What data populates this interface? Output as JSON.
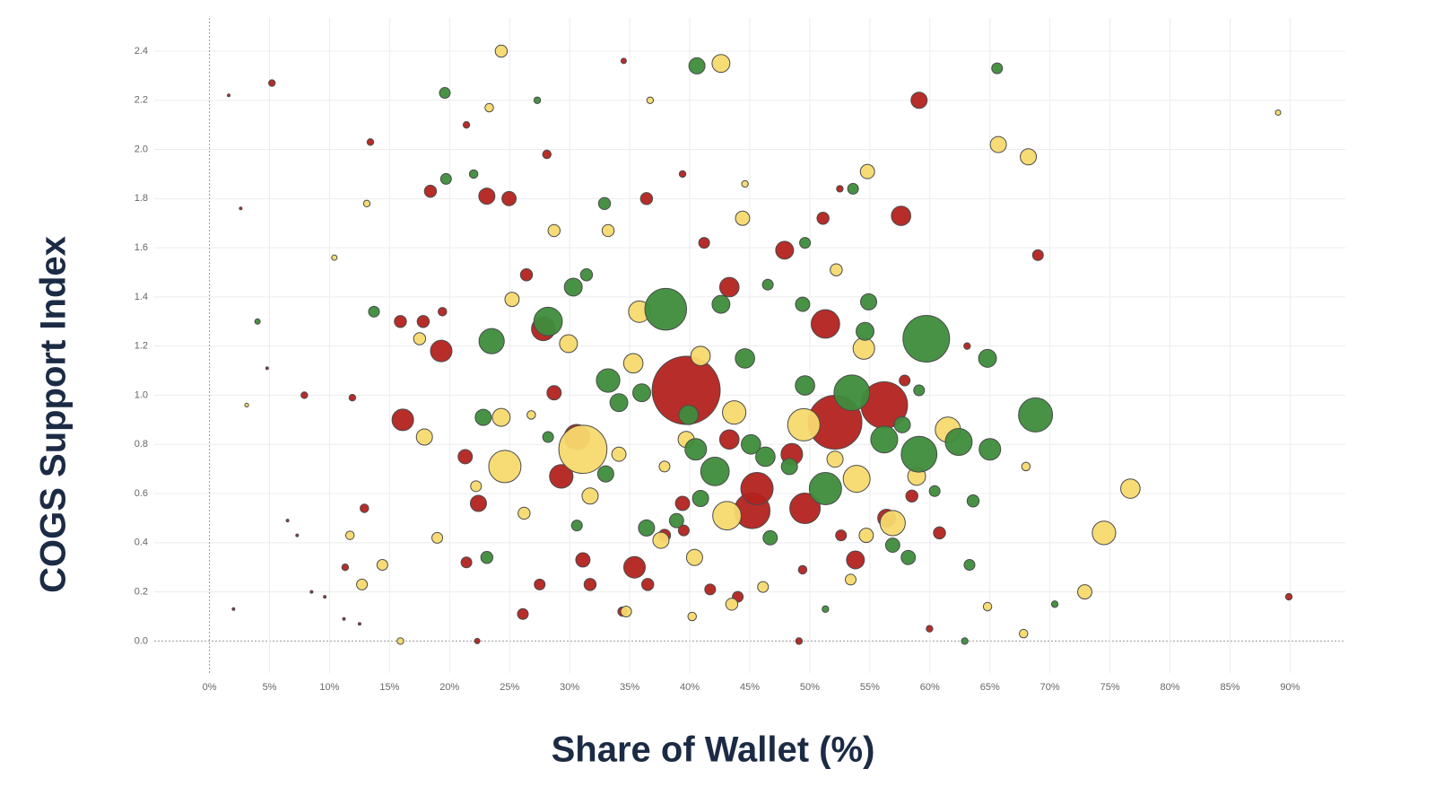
{
  "chart_data": {
    "type": "scatter",
    "x_label": "Share of Wallet (%)",
    "y_label": "COGS Support Index",
    "xlim": [
      -4.6,
      94.6
    ],
    "ylim": [
      -0.13,
      2.535
    ],
    "xticks": [
      {
        "value": 0,
        "label": "0%"
      },
      {
        "value": 5,
        "label": "5%"
      },
      {
        "value": 10,
        "label": "10%"
      },
      {
        "value": 15,
        "label": "15%"
      },
      {
        "value": 20,
        "label": "20%"
      },
      {
        "value": 25,
        "label": "25%"
      },
      {
        "value": 30,
        "label": "30%"
      },
      {
        "value": 35,
        "label": "35%"
      },
      {
        "value": 40,
        "label": "40%"
      },
      {
        "value": 45,
        "label": "45%"
      },
      {
        "value": 50,
        "label": "50%"
      },
      {
        "value": 55,
        "label": "55%"
      },
      {
        "value": 60,
        "label": "60%"
      },
      {
        "value": 65,
        "label": "65%"
      },
      {
        "value": 70,
        "label": "70%"
      },
      {
        "value": 75,
        "label": "75%"
      },
      {
        "value": 80,
        "label": "80%"
      },
      {
        "value": 85,
        "label": "85%"
      },
      {
        "value": 90,
        "label": "90%"
      }
    ],
    "yticks": [
      {
        "value": 0,
        "label": "0.0"
      },
      0.2,
      0.4,
      0.6,
      0.8,
      {
        "value": 1,
        "label": "1.0"
      },
      1.2,
      1.4,
      1.6,
      1.8,
      {
        "value": 2,
        "label": "2.0"
      },
      2.2,
      2.4
    ],
    "grid": true,
    "series": [
      {
        "color": "#b3221e",
        "x": [
          39.7,
          52.1,
          56.2,
          45.2,
          45.6,
          49.6,
          51.3,
          30.6,
          29.3,
          35.4,
          19.3,
          16.1,
          57.6,
          59.1,
          23.1,
          24.95,
          47.9,
          43.3,
          48.5,
          43.3,
          27.8,
          56.4,
          53.8,
          22.4,
          21.3,
          18.4,
          26.4,
          17.8,
          15.9,
          36.4,
          51.1,
          41.2,
          31.1,
          31.7,
          36.5,
          28.7,
          37.9,
          39.4,
          39.5,
          44.0,
          60.8,
          57.9,
          58.5,
          69.0,
          26.1,
          21.4,
          34.4,
          27.5,
          34.5,
          5.2,
          28.1,
          13.4,
          21.4,
          49.1,
          89.9,
          63.1,
          12.9,
          11.3,
          7.9,
          11.9,
          22.3,
          59.97,
          49.4,
          41.7,
          52.6,
          19.4,
          52.5,
          39.4,
          1.6,
          2.6,
          4.8,
          6.5,
          8.5,
          2.0,
          9.6,
          11.2,
          12.5,
          7.3
        ],
        "values": [
          1.02,
          0.89,
          0.96,
          0.53,
          0.62,
          0.54,
          1.29,
          0.83,
          0.67,
          0.3,
          1.18,
          0.9,
          1.73,
          2.2,
          1.81,
          1.8,
          1.59,
          1.44,
          0.76,
          0.82,
          1.27,
          0.5,
          0.33,
          0.56,
          0.75,
          1.83,
          1.49,
          1.3,
          1.3,
          1.8,
          1.72,
          1.62,
          0.33,
          0.23,
          0.23,
          1.01,
          0.43,
          0.56,
          0.45,
          0.18,
          0.44,
          1.06,
          0.59,
          1.57,
          0.11,
          0.32,
          0.12,
          0.23,
          2.36,
          2.27,
          1.98,
          2.03,
          2.1,
          0.0,
          0.18,
          1.2,
          0.54,
          0.3,
          1.0,
          0.99,
          0.0,
          0.05,
          0.29,
          0.21,
          0.43,
          1.34,
          1.84,
          1.9,
          2.22,
          1.76,
          1.11,
          0.49,
          0.2,
          0.13,
          0.18,
          0.09,
          0.07,
          0.43
        ],
        "sizes": [
          160,
          100,
          75,
          44,
          36,
          32,
          28,
          22,
          19,
          16,
          16,
          16,
          13,
          9,
          9,
          7,
          11,
          13,
          16,
          13,
          19,
          11,
          11,
          9,
          7,
          5,
          5,
          5,
          5,
          5,
          5,
          4,
          7,
          5,
          5,
          7,
          5,
          7,
          4,
          4,
          5,
          4,
          5,
          4,
          4,
          4,
          3,
          4,
          1,
          1.5,
          2.5,
          1.5,
          1.5,
          1.5,
          1.5,
          1.5,
          2.5,
          1.5,
          1.5,
          1.5,
          1,
          1.5,
          2.5,
          4,
          4,
          2.5,
          1.5,
          1.5,
          0.25,
          0.25,
          0.25,
          0.25,
          0.25,
          0.25,
          0.25,
          0.25,
          0.25,
          0.25
        ]
      },
      {
        "color": "#f7d96e",
        "x": [
          31.1,
          24.6,
          49.5,
          53.9,
          43.1,
          61.5,
          74.5,
          76.7,
          43.7,
          54.5,
          35.8,
          40.9,
          56.9,
          29.9,
          24.3,
          42.6,
          65.7,
          68.2,
          54.8,
          24.3,
          44.4,
          33.2,
          28.7,
          52.2,
          25.2,
          17.9,
          37.6,
          40.4,
          31.7,
          35.3,
          58.9,
          72.9,
          54.7,
          52.1,
          43.5,
          46.1,
          34.7,
          40.2,
          67.8,
          64.8,
          68.0,
          12.7,
          17.5,
          36.7,
          23.3,
          44.6,
          13.1,
          18.97,
          14.4,
          26.2,
          22.2,
          15.9,
          11.7,
          26.8,
          53.4,
          89.0,
          10.4,
          39.7,
          34.1,
          37.9,
          3.1
        ],
        "values": [
          0.78,
          0.71,
          0.88,
          0.66,
          0.51,
          0.86,
          0.44,
          0.62,
          0.93,
          1.19,
          1.34,
          1.16,
          0.48,
          1.21,
          0.91,
          2.35,
          2.02,
          1.97,
          1.91,
          2.4,
          1.72,
          1.67,
          1.67,
          1.51,
          1.39,
          0.83,
          0.41,
          0.34,
          0.59,
          1.13,
          0.67,
          0.2,
          0.43,
          0.74,
          0.15,
          0.22,
          0.12,
          0.1,
          0.03,
          0.14,
          0.71,
          0.23,
          1.23,
          2.2,
          2.17,
          1.86,
          1.78,
          0.42,
          0.31,
          0.52,
          0.63,
          0.0,
          0.43,
          0.92,
          0.25,
          2.15,
          1.56,
          0.82,
          0.76,
          0.71,
          0.96
        ],
        "sizes": [
          80,
          36,
          36,
          25,
          28,
          22,
          19,
          13,
          19,
          16,
          16,
          13,
          22,
          11,
          11,
          11,
          9,
          9,
          7,
          5,
          7,
          5,
          5,
          5,
          7,
          9,
          9,
          9,
          9,
          13,
          11,
          7,
          7,
          9,
          5,
          4,
          4,
          2.5,
          2.5,
          2.5,
          2.5,
          4,
          5,
          1.5,
          2.5,
          1.5,
          1.5,
          4,
          4,
          5,
          4,
          1.5,
          2.5,
          2.5,
          4,
          1,
          1,
          9,
          7,
          4,
          0.5
        ]
      },
      {
        "color": "#3e8c3c",
        "x": [
          59.7,
          38.0,
          68.8,
          59.1,
          51.3,
          53.5,
          28.2,
          42.1,
          62.4,
          56.2,
          23.5,
          33.2,
          65.0,
          44.6,
          40.5,
          45.1,
          46.3,
          39.9,
          49.6,
          64.8,
          54.6,
          42.6,
          54.9,
          30.3,
          34.1,
          36.0,
          48.3,
          57.7,
          33.0,
          22.8,
          40.6,
          65.6,
          19.6,
          32.9,
          31.4,
          49.4,
          46.5,
          36.4,
          38.9,
          40.9,
          23.1,
          56.9,
          58.2,
          63.6,
          63.3,
          46.7,
          13.7,
          53.6,
          49.6,
          62.9,
          70.4,
          51.3,
          22.0,
          27.3,
          19.7,
          59.1,
          28.2,
          60.4,
          4.0,
          30.6
        ],
        "values": [
          1.23,
          1.35,
          0.92,
          0.76,
          0.62,
          1.01,
          1.3,
          0.69,
          0.81,
          0.82,
          1.22,
          1.06,
          0.78,
          1.15,
          0.78,
          0.8,
          0.75,
          0.92,
          1.04,
          1.15,
          1.26,
          1.37,
          1.38,
          1.44,
          0.97,
          1.01,
          0.71,
          0.88,
          0.68,
          0.91,
          2.34,
          2.33,
          2.23,
          1.78,
          1.49,
          1.37,
          1.45,
          0.46,
          0.49,
          0.58,
          0.34,
          0.39,
          0.34,
          0.57,
          0.31,
          0.42,
          1.34,
          1.84,
          1.62,
          0.0,
          0.15,
          0.13,
          1.9,
          2.2,
          1.88,
          1.02,
          0.83,
          0.61,
          1.3,
          0.47
        ],
        "sizes": [
          75,
          60,
          40,
          44,
          36,
          44,
          28,
          28,
          25,
          25,
          22,
          19,
          16,
          13,
          16,
          13,
          13,
          13,
          13,
          11,
          11,
          11,
          9,
          11,
          11,
          11,
          9,
          9,
          9,
          9,
          9,
          4,
          4,
          5,
          5,
          7,
          4,
          9,
          7,
          9,
          5,
          7,
          7,
          5,
          4,
          7,
          4,
          4,
          4,
          1.5,
          1.5,
          1.5,
          2.5,
          1.5,
          4,
          4,
          4,
          4,
          1,
          4
        ]
      }
    ]
  }
}
